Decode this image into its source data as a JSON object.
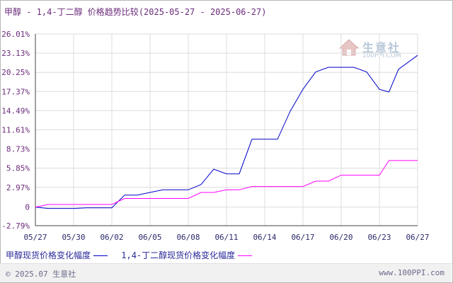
{
  "title": {
    "main": "甲醇 - 1,4-丁二醇 价格趋势比较",
    "range": "(2025-05-27 - 2025-06-27)"
  },
  "watermark": {
    "name": "生意社",
    "url": "100PPI.COM"
  },
  "footer": {
    "copyright": "© 2025.07 生意社",
    "site": "www.100PPI.com"
  },
  "chart_data": {
    "type": "line",
    "title": "甲醇 - 1,4-丁二醇 价格趋势比较",
    "xlabel": "",
    "ylabel": "",
    "x_ticks": [
      "05/27",
      "05/30",
      "06/02",
      "06/05",
      "06/08",
      "06/11",
      "06/14",
      "06/17",
      "06/20",
      "06/23",
      "06/27"
    ],
    "y_ticks": [
      "26.01%",
      "23.13%",
      "20.25%",
      "17.37%",
      "14.49%",
      "11.61%",
      "8.73%",
      "5.85%",
      "2.97%",
      "0",
      "-2.79%"
    ],
    "ylim": [
      -2.79,
      26.01
    ],
    "grid": true,
    "legend_position": "bottom",
    "series": [
      {
        "name": "甲醇现货价格变化幅度",
        "color": "#0000cc",
        "points": [
          [
            "05/27",
            0.0
          ],
          [
            "05/28",
            -0.2
          ],
          [
            "05/29",
            -0.2
          ],
          [
            "05/30",
            -0.2
          ],
          [
            "05/31",
            -0.1
          ],
          [
            "06/01",
            -0.1
          ],
          [
            "06/02",
            -0.1
          ],
          [
            "06/03",
            1.8
          ],
          [
            "06/04",
            1.8
          ],
          [
            "06/05",
            2.2
          ],
          [
            "06/06",
            2.6
          ],
          [
            "06/07",
            2.6
          ],
          [
            "06/08",
            2.6
          ],
          [
            "06/09",
            3.4
          ],
          [
            "06/10",
            5.7
          ],
          [
            "06/11",
            5.0
          ],
          [
            "06/12",
            5.0
          ],
          [
            "06/13",
            10.2
          ],
          [
            "06/14",
            10.2
          ],
          [
            "06/15",
            10.2
          ],
          [
            "06/16",
            14.4
          ],
          [
            "06/17",
            17.7
          ],
          [
            "06/18",
            20.3
          ],
          [
            "06/19",
            21.0
          ],
          [
            "06/20",
            21.0
          ],
          [
            "06/21",
            21.0
          ],
          [
            "06/22",
            20.3
          ],
          [
            "06/23",
            17.7
          ],
          [
            "06/24",
            17.3
          ],
          [
            "06/25",
            20.7
          ],
          [
            "06/27",
            22.8
          ]
        ]
      },
      {
        "name": "1,4-丁二醇现货价格变化幅度",
        "color": "#ff00ff",
        "points": [
          [
            "05/27",
            0.0
          ],
          [
            "05/28",
            0.4
          ],
          [
            "05/29",
            0.4
          ],
          [
            "05/30",
            0.4
          ],
          [
            "05/31",
            0.4
          ],
          [
            "06/01",
            0.4
          ],
          [
            "06/02",
            0.4
          ],
          [
            "06/03",
            1.3
          ],
          [
            "06/04",
            1.3
          ],
          [
            "06/05",
            1.3
          ],
          [
            "06/06",
            1.3
          ],
          [
            "06/07",
            1.3
          ],
          [
            "06/08",
            1.3
          ],
          [
            "06/09",
            2.2
          ],
          [
            "06/10",
            2.2
          ],
          [
            "06/11",
            2.6
          ],
          [
            "06/12",
            2.6
          ],
          [
            "06/13",
            3.1
          ],
          [
            "06/14",
            3.1
          ],
          [
            "06/15",
            3.1
          ],
          [
            "06/16",
            3.1
          ],
          [
            "06/17",
            3.1
          ],
          [
            "06/18",
            3.9
          ],
          [
            "06/19",
            3.9
          ],
          [
            "06/20",
            4.8
          ],
          [
            "06/21",
            4.8
          ],
          [
            "06/22",
            4.8
          ],
          [
            "06/23",
            4.8
          ],
          [
            "06/24",
            7.0
          ],
          [
            "06/25",
            7.0
          ],
          [
            "06/27",
            7.0
          ]
        ]
      }
    ]
  }
}
